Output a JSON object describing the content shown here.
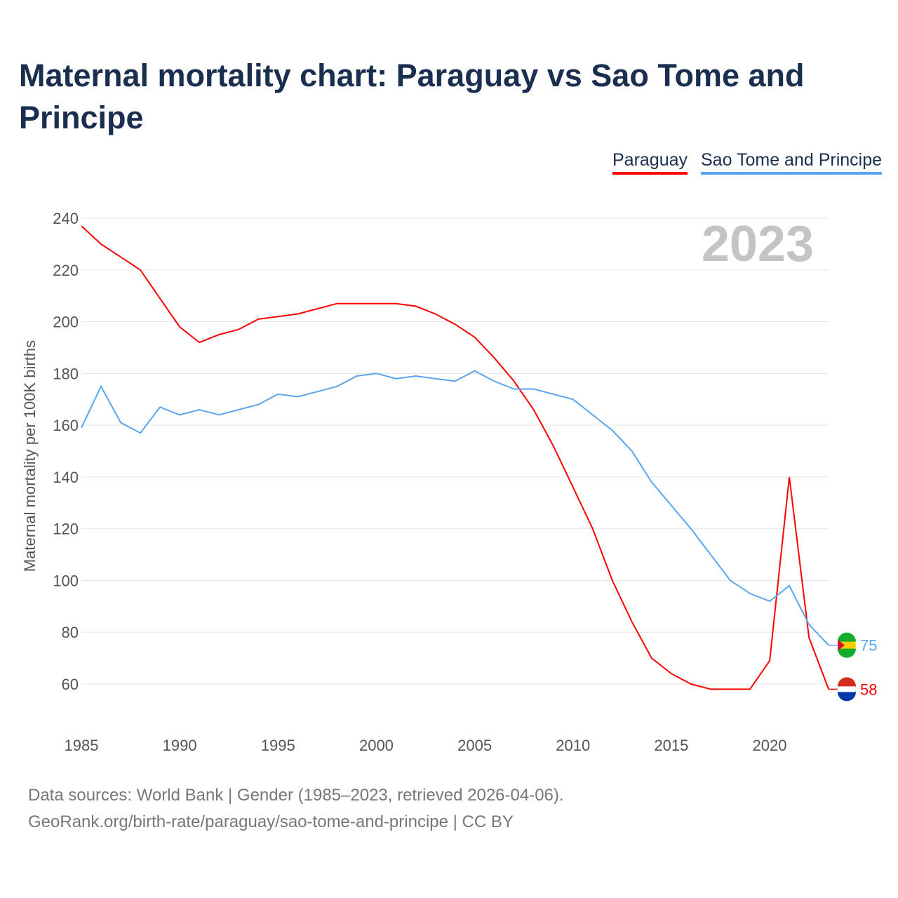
{
  "title": "Maternal mortality chart: Paraguay vs Sao Tome and Principe",
  "footer": {
    "line1": "Data sources: World Bank | Gender (1985–2023, retrieved 2026-04-06).",
    "line2": "GeoRank.org/birth-rate/paraguay/sao-tome-and-principe | CC BY"
  },
  "chart_data": {
    "type": "line",
    "title": "Maternal mortality chart: Paraguay vs Sao Tome and Principe",
    "ylabel": "Maternal mortality per 100K births",
    "xlabel": "",
    "year_label": "2023",
    "xlim": [
      1985,
      2023
    ],
    "ylim": [
      60,
      240
    ],
    "xticks": [
      "1985",
      "1990",
      "1995",
      "2000",
      "2005",
      "2010",
      "2015",
      "2020"
    ],
    "yticks": [
      "60",
      "80",
      "100",
      "120",
      "140",
      "160",
      "180",
      "200",
      "220",
      "240"
    ],
    "legend": "top-right",
    "x": [
      1985,
      1986,
      1987,
      1988,
      1989,
      1990,
      1991,
      1992,
      1993,
      1994,
      1995,
      1996,
      1997,
      1998,
      1999,
      2000,
      2001,
      2002,
      2003,
      2004,
      2005,
      2006,
      2007,
      2008,
      2009,
      2010,
      2011,
      2012,
      2013,
      2014,
      2015,
      2016,
      2017,
      2018,
      2019,
      2020,
      2021,
      2022,
      2023
    ],
    "series": [
      {
        "name": "Paraguay",
        "color": "#ff0000",
        "end_label": "58",
        "values": [
          237,
          230,
          225,
          220,
          209,
          198,
          192,
          195,
          197,
          201,
          202,
          203,
          205,
          207,
          207,
          207,
          207,
          206,
          203,
          199,
          194,
          186,
          177,
          166,
          152,
          136,
          120,
          100,
          84,
          70,
          64,
          60,
          58,
          58,
          58,
          69,
          140,
          78,
          58
        ]
      },
      {
        "name": "Sao Tome and Principe",
        "color": "#5aa5ef",
        "end_label": "75",
        "values": [
          159,
          175,
          161,
          157,
          167,
          164,
          166,
          164,
          166,
          168,
          172,
          171,
          173,
          175,
          179,
          180,
          178,
          179,
          178,
          177,
          181,
          177,
          174,
          174,
          172,
          170,
          164,
          158,
          150,
          138,
          129,
          120,
          110,
          100,
          95,
          92,
          98,
          83,
          75
        ]
      }
    ]
  }
}
